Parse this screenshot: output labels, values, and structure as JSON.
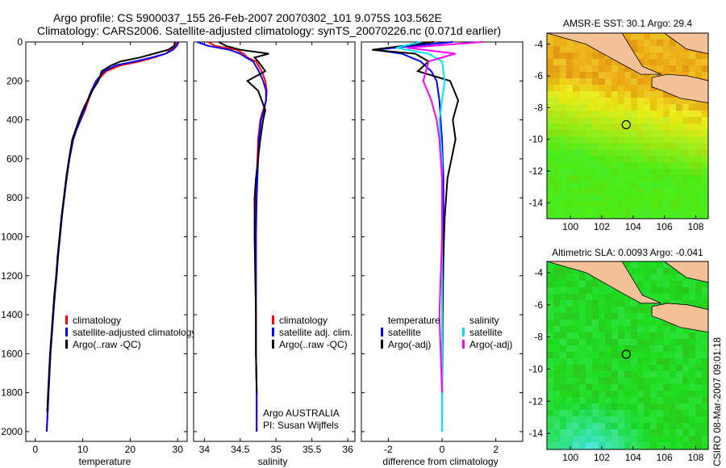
{
  "title_line1": "Argo profile: CS 5900037_155 26-Feb-2007 20070302_101 9.075S 103.562E",
  "title_line2": "Climatology: CARS2006. Satellite-adjusted climatology: synTS_20070226.nc (0.071d earlier)",
  "credit": "CSIRO 08-Mar-2007 09:01:18",
  "colors": {
    "climatology": "#ff0000",
    "satellite": "#0000ff",
    "argo": "#000000",
    "salinity_sat": "#00e5ee",
    "salinity_argo": "#ff00ff",
    "land": "#f4c095",
    "sea_green": "#22bb33"
  },
  "chart_data": [
    {
      "id": "temperature",
      "type": "line",
      "xlabel": "temperature",
      "xlim": [
        -2,
        32
      ],
      "ylim": [
        2050,
        0
      ],
      "xticks": [
        0,
        10,
        20,
        30
      ],
      "yticks": [
        0,
        200,
        400,
        600,
        800,
        1000,
        1200,
        1400,
        1600,
        1800,
        2000
      ],
      "legend": [
        "climatology",
        "satellite-adjusted climatology",
        "Argo(..raw -QC)"
      ],
      "series": [
        {
          "name": "climatology",
          "color": "#ff0000",
          "x": [
            29.8,
            29.5,
            28.5,
            27.5,
            25,
            22,
            18,
            15,
            13,
            12,
            11.2,
            10.5,
            9.6,
            8.7,
            8,
            7.2,
            6.6,
            6.1,
            5.6,
            5.2,
            4.8,
            4.5,
            4.1,
            3.8,
            3.5,
            3.2,
            3,
            2.8,
            2.6,
            2.4
          ],
          "y": [
            0,
            20,
            40,
            60,
            80,
            100,
            120,
            150,
            200,
            250,
            300,
            350,
            400,
            450,
            500,
            600,
            700,
            800,
            900,
            1000,
            1100,
            1200,
            1300,
            1400,
            1500,
            1600,
            1700,
            1800,
            1900,
            2000
          ]
        },
        {
          "name": "satellite",
          "color": "#0000ff",
          "x": [
            30.2,
            29.8,
            29,
            27.5,
            24.5,
            21,
            17,
            14.5,
            12.8,
            11.8,
            11,
            10.3,
            9.5,
            8.7,
            8,
            7.2,
            6.6,
            6.1,
            5.6,
            5.2,
            4.8,
            4.5,
            4.1,
            3.8,
            3.5,
            3.2,
            3,
            2.8,
            2.6,
            2.4
          ],
          "y": [
            0,
            20,
            40,
            60,
            80,
            100,
            120,
            150,
            200,
            250,
            300,
            350,
            400,
            450,
            500,
            600,
            700,
            800,
            900,
            1000,
            1100,
            1200,
            1300,
            1400,
            1500,
            1600,
            1700,
            1800,
            1900,
            2000
          ]
        },
        {
          "name": "Argo",
          "color": "#000000",
          "x": [
            29.4,
            29.3,
            28,
            25,
            22,
            18,
            16,
            14,
            13.3,
            12,
            11,
            10,
            9.2,
            8.5,
            7.8,
            7.1,
            6.5,
            6,
            5.5,
            5.1,
            4.7,
            4.4,
            4,
            3.7,
            3.4,
            3.1,
            2.9,
            2.7,
            2.5
          ],
          "y": [
            0,
            20,
            40,
            60,
            80,
            100,
            120,
            150,
            200,
            250,
            300,
            350,
            400,
            450,
            500,
            600,
            700,
            800,
            900,
            1000,
            1100,
            1200,
            1300,
            1400,
            1500,
            1600,
            1700,
            1800,
            1900
          ]
        }
      ]
    },
    {
      "id": "salinity",
      "type": "line",
      "xlabel": "salinity",
      "xlim": [
        33.85,
        36.1
      ],
      "ylim": [
        2050,
        0
      ],
      "xticks": [
        34,
        34.5,
        35,
        35.5,
        36
      ],
      "legend": [
        "climatology",
        "satellite adj. clim.",
        "Argo(..raw -QC)"
      ],
      "annotation_line1": "Argo AUSTRALIA",
      "annotation_line2": "PI: Susan Wijffels",
      "series": [
        {
          "name": "climatology",
          "color": "#ff0000",
          "x": [
            34.05,
            34.15,
            34.45,
            34.55,
            34.6,
            34.72,
            34.8,
            34.85,
            34.87,
            34.86,
            34.82,
            34.78,
            34.75,
            34.74,
            34.73,
            34.72,
            34.72,
            34.72,
            34.72,
            34.72,
            34.73,
            34.73
          ],
          "y": [
            0,
            20,
            40,
            60,
            80,
            100,
            150,
            200,
            250,
            300,
            350,
            400,
            500,
            600,
            700,
            800,
            1000,
            1200,
            1400,
            1600,
            1800,
            2000
          ]
        },
        {
          "name": "satellite",
          "color": "#0000ff",
          "x": [
            33.9,
            34.05,
            34.35,
            34.5,
            34.58,
            34.68,
            34.76,
            34.82,
            34.86,
            34.86,
            34.83,
            34.79,
            34.76,
            34.75,
            34.74,
            34.73,
            34.72,
            34.72,
            34.72,
            34.72,
            34.73,
            34.73
          ],
          "y": [
            0,
            20,
            40,
            60,
            80,
            100,
            150,
            200,
            250,
            300,
            350,
            400,
            500,
            600,
            700,
            800,
            1000,
            1200,
            1400,
            1600,
            1800,
            2000
          ]
        },
        {
          "name": "Argo",
          "color": "#000000",
          "x": [
            34.2,
            34.3,
            34.5,
            34.9,
            34.7,
            34.75,
            34.85,
            34.6,
            34.75,
            34.8,
            34.85,
            34.82,
            34.78,
            34.75,
            34.72,
            34.7,
            34.7,
            34.71,
            34.72,
            34.72,
            34.73
          ],
          "y": [
            0,
            20,
            40,
            60,
            80,
            100,
            150,
            200,
            250,
            300,
            350,
            400,
            500,
            600,
            700,
            800,
            1000,
            1200,
            1400,
            1600,
            1800
          ]
        }
      ]
    },
    {
      "id": "difference",
      "type": "line",
      "xlabel": "difference from climatology",
      "xlim": [
        -3,
        3
      ],
      "ylim": [
        2050,
        0
      ],
      "xticks": [
        -2,
        0,
        2
      ],
      "legend_temperature": [
        "temperature",
        "satellite",
        "Argo(-adj)"
      ],
      "legend_salinity": [
        "salinity",
        "satellite",
        "Argo(-adj)"
      ],
      "series": [
        {
          "name": "temperature satellite",
          "color": "#0000ff",
          "x": [
            0.4,
            -2.5,
            -1.5,
            -0.8,
            -0.4,
            -0.2,
            -0.1,
            -0.05,
            0,
            0.05,
            0.05,
            0.05,
            0,
            0,
            0
          ],
          "y": [
            0,
            40,
            60,
            100,
            150,
            200,
            300,
            400,
            500,
            700,
            900,
            1100,
            1400,
            1700,
            2000
          ]
        },
        {
          "name": "temperature Argo",
          "color": "#000000",
          "x": [
            -0.3,
            -2.6,
            -1,
            -0.5,
            -0.9,
            0.3,
            0.6,
            0.4,
            0.5,
            0.35,
            0.2,
            0.1,
            0.05,
            0.02,
            0
          ],
          "y": [
            0,
            40,
            60,
            100,
            150,
            200,
            300,
            400,
            500,
            600,
            700,
            900,
            1100,
            1400,
            1900
          ]
        },
        {
          "name": "salinity satellite",
          "color": "#00e5ee",
          "x": [
            -0.8,
            -1.7,
            -0.5,
            0,
            0.1,
            0,
            -0.1,
            0,
            0,
            0,
            0
          ],
          "y": [
            0,
            30,
            60,
            100,
            200,
            300,
            400,
            600,
            900,
            1300,
            2000
          ]
        },
        {
          "name": "salinity Argo",
          "color": "#ff00ff",
          "x": [
            1.5,
            -1.3,
            0.5,
            -0.5,
            -0.7,
            -0.4,
            -0.2,
            -0.1,
            0,
            0,
            -0.1,
            0
          ],
          "y": [
            0,
            30,
            60,
            100,
            200,
            300,
            400,
            500,
            700,
            1000,
            1400,
            1800
          ]
        }
      ]
    },
    {
      "id": "sst_map",
      "type": "heatmap",
      "title": "AMSR-E SST: 30.1 Argo: 29.4",
      "xticks": [
        100,
        102,
        104,
        106,
        108
      ],
      "yticks": [
        -4,
        -6,
        -8,
        -10,
        -12,
        -14
      ],
      "xlim": [
        98.5,
        108.8
      ],
      "ylim": [
        -15,
        -3.3
      ],
      "marker": {
        "lon": 103.562,
        "lat": -9.075
      }
    },
    {
      "id": "sla_map",
      "type": "heatmap",
      "title": "Altimetric SLA: 0.0093 Argo: -0.041",
      "xticks": [
        100,
        102,
        104,
        106,
        108
      ],
      "yticks": [
        -4,
        -6,
        -8,
        -10,
        -12,
        -14
      ],
      "xlim": [
        98.5,
        108.8
      ],
      "ylim": [
        -15,
        -3.3
      ],
      "marker": {
        "lon": 103.562,
        "lat": -9.075
      }
    }
  ]
}
